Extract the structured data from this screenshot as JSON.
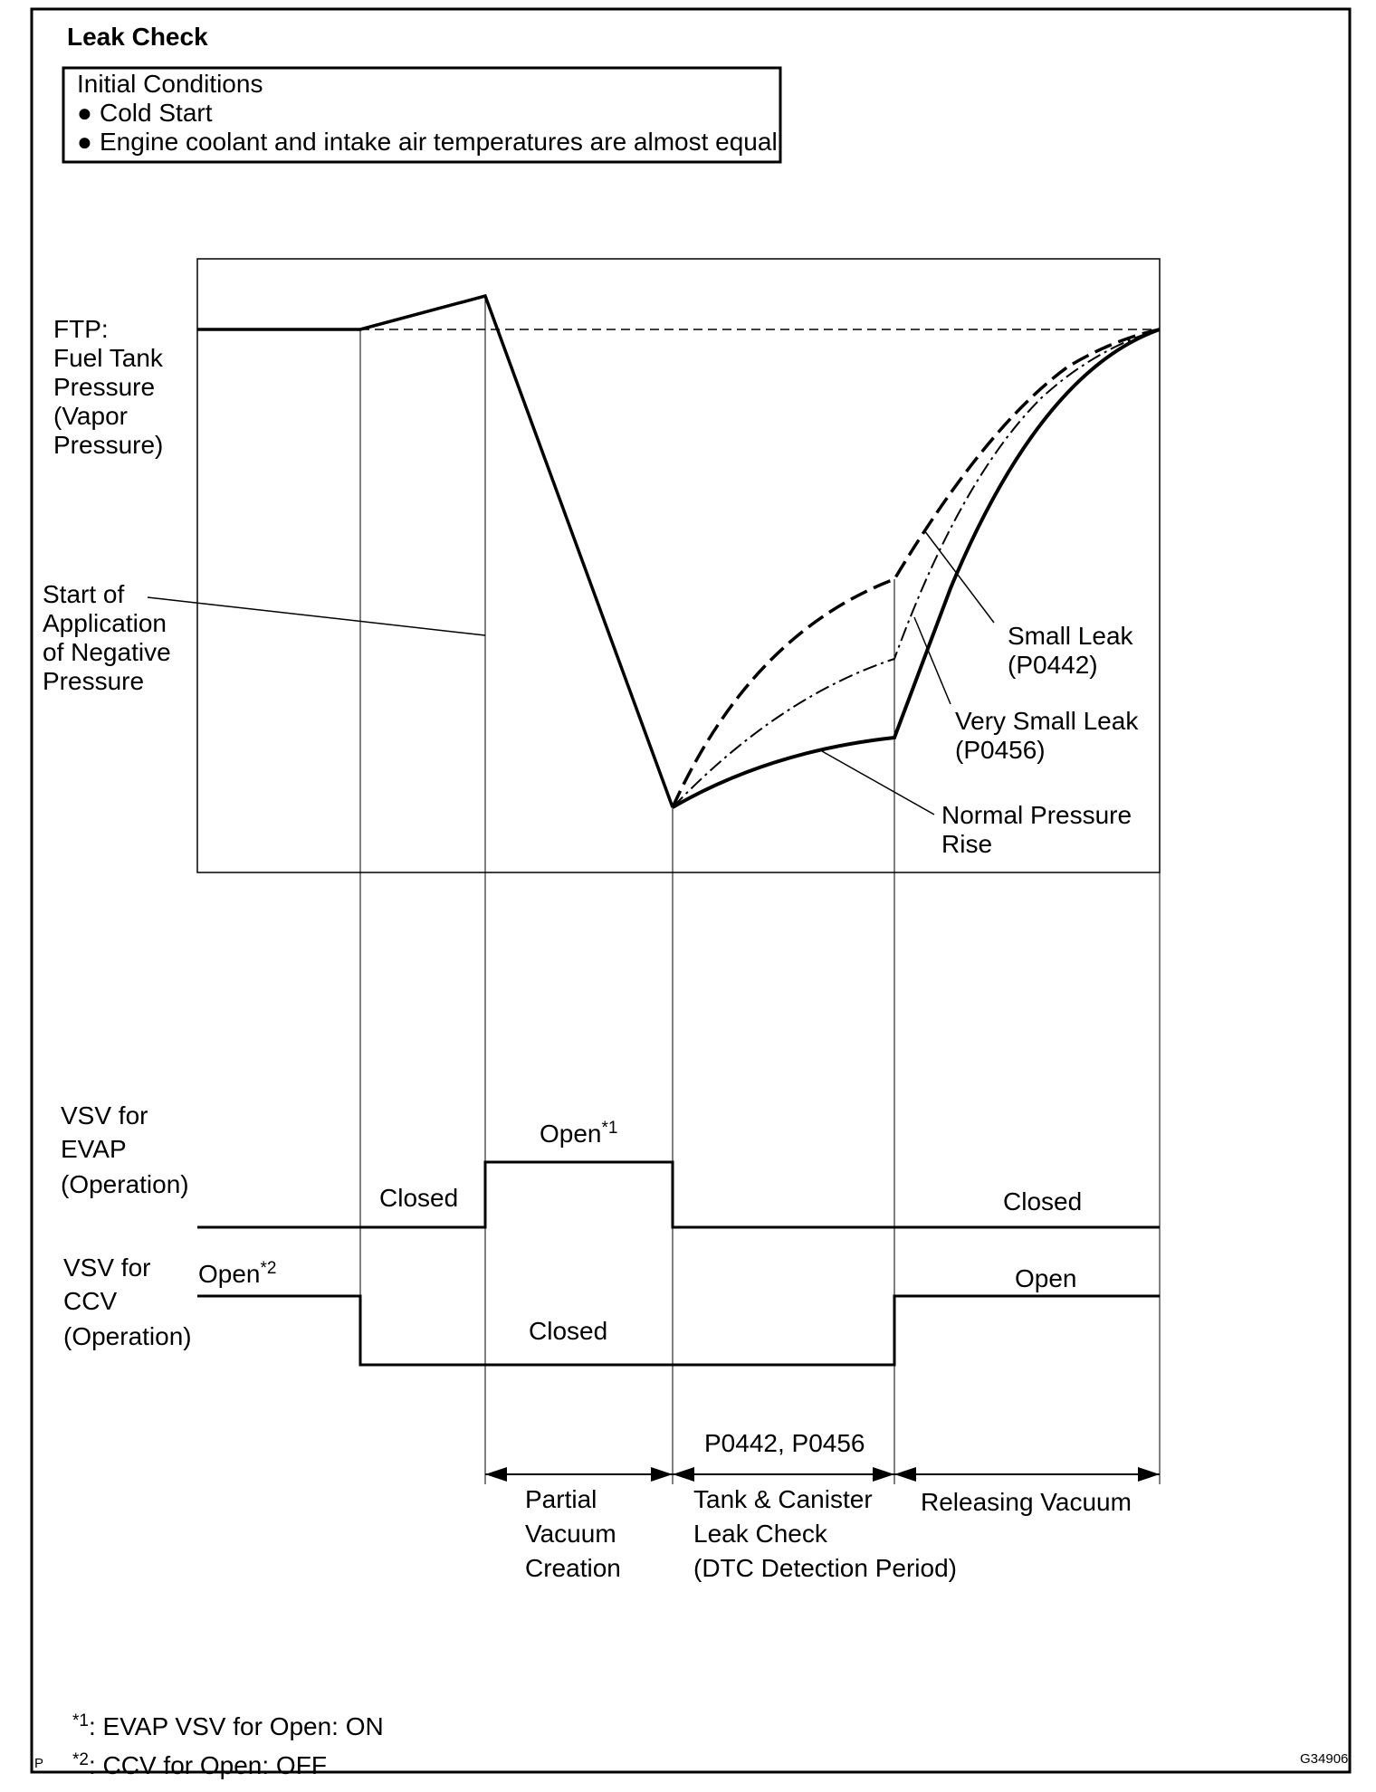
{
  "title": "Leak Check",
  "initial_conditions": {
    "heading": "Initial Conditions",
    "items": [
      "Cold Start",
      "Engine coolant and intake air temperatures are almost equal"
    ],
    "bullet": "●"
  },
  "ftp_label": [
    "FTP:",
    "Fuel Tank",
    "Pressure",
    "(Vapor",
    "Pressure)"
  ],
  "negative_pressure_label": [
    "Start of",
    "Application",
    "of  Negative",
    "Pressure"
  ],
  "curve_labels": {
    "small_leak": [
      "Small Leak",
      "(P0442)"
    ],
    "very_small_leak": [
      "Very Small Leak",
      "(P0456)"
    ],
    "normal_rise": [
      "Normal Pressure",
      "Rise"
    ]
  },
  "evap_label": [
    "VSV for",
    "EVAP",
    "(Operation)"
  ],
  "ccv_label": [
    "VSV for",
    "CCV",
    "(Operation)"
  ],
  "evap_states": {
    "closed_before": "Closed",
    "open": "Open",
    "open_mark": "*1",
    "closed_after": "Closed"
  },
  "ccv_states": {
    "open_before": "Open",
    "open_mark": "*2",
    "closed": "Closed",
    "open_after": "Open"
  },
  "periods": {
    "dtc_codes": "P0442, P0456",
    "partial_vacuum": [
      "Partial",
      "Vacuum",
      "Creation"
    ],
    "leak_check": [
      "Tank & Canister",
      "Leak Check",
      "(DTC Detection Period)"
    ],
    "releasing": "Releasing Vacuum"
  },
  "footnotes": [
    {
      "mark": "*1",
      "text": ": EVAP VSV for Open: ON"
    },
    {
      "mark": "*2",
      "text": ": CCV for Open: OFF"
    }
  ],
  "corner_left": "P",
  "corner_right": "G34906"
}
